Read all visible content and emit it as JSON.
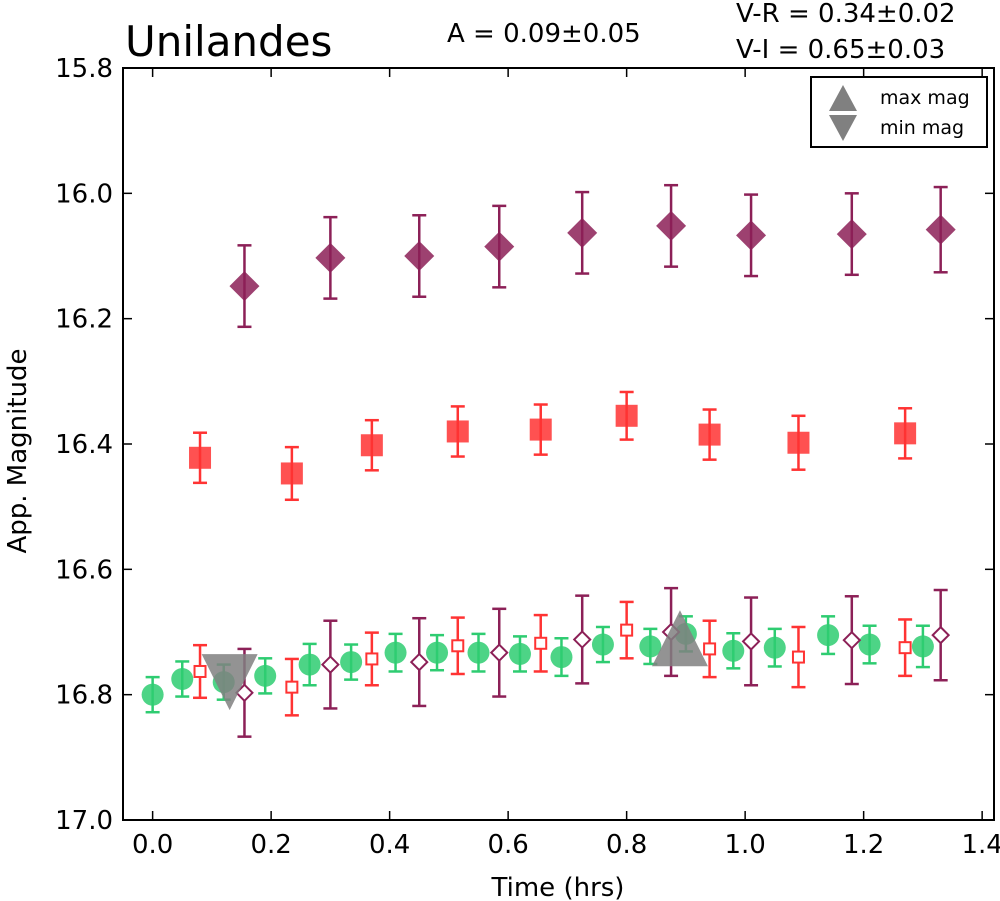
{
  "chart_data": {
    "type": "scatter",
    "title": "Unilandes",
    "annotations": {
      "amplitude": "A  = 0.09±0.05",
      "v_r": "V-R = 0.34±0.02",
      "v_i": "V-I  = 0.65±0.03"
    },
    "xlabel": "Time (hrs)",
    "ylabel": "App. Magnitude",
    "xlim": [
      -0.05,
      1.42
    ],
    "ylim": [
      17.0,
      15.8
    ],
    "y_inverted": true,
    "xticks": [
      "0.0",
      "0.2",
      "0.4",
      "0.6",
      "0.8",
      "1.0",
      "1.2",
      "1.4"
    ],
    "yticks": [
      "15.8",
      "16.0",
      "16.2",
      "16.4",
      "16.6",
      "16.8",
      "17.0"
    ],
    "grid": false,
    "legend": {
      "placement": "top-right",
      "entries": [
        {
          "label": "max mag",
          "marker": "triangle-up",
          "color": "#808080"
        },
        {
          "label": "min mag",
          "marker": "triangle-down",
          "color": "#808080"
        }
      ]
    },
    "series": [
      {
        "marker": "circle",
        "color": "#2ecc71",
        "filled": true,
        "x": [
          0.0,
          0.05,
          0.12,
          0.19,
          0.265,
          0.335,
          0.41,
          0.48,
          0.55,
          0.62,
          0.69,
          0.76,
          0.84,
          0.9,
          0.98,
          1.05,
          1.14,
          1.21,
          1.3
        ],
        "y": [
          16.8,
          16.775,
          16.78,
          16.77,
          16.752,
          16.748,
          16.733,
          16.733,
          16.733,
          16.735,
          16.74,
          16.72,
          16.723,
          16.703,
          16.73,
          16.725,
          16.705,
          16.72,
          16.723
        ],
        "err": [
          0.028,
          0.028,
          0.028,
          0.028,
          0.033,
          0.028,
          0.03,
          0.028,
          0.03,
          0.028,
          0.03,
          0.028,
          0.028,
          0.028,
          0.028,
          0.03,
          0.03,
          0.03,
          0.033
        ]
      },
      {
        "marker": "square",
        "color": "#ff3333",
        "filled": true,
        "x": [
          0.08,
          0.235,
          0.37,
          0.515,
          0.655,
          0.8,
          0.94,
          1.09,
          1.27
        ],
        "y": [
          16.422,
          16.447,
          16.402,
          16.38,
          16.377,
          16.355,
          16.385,
          16.398,
          16.383
        ],
        "err": [
          0.04,
          0.042,
          0.04,
          0.04,
          0.04,
          0.038,
          0.04,
          0.043,
          0.04
        ]
      },
      {
        "marker": "diamond",
        "color": "#8c2057",
        "filled": true,
        "x": [
          0.155,
          0.3,
          0.45,
          0.585,
          0.725,
          0.875,
          1.01,
          1.18,
          1.33
        ],
        "y": [
          16.148,
          16.103,
          16.1,
          16.085,
          16.063,
          16.052,
          16.067,
          16.065,
          16.058
        ],
        "err": [
          0.065,
          0.065,
          0.065,
          0.065,
          0.065,
          0.065,
          0.065,
          0.065,
          0.068
        ]
      },
      {
        "marker": "square",
        "color": "#ff3333",
        "filled": false,
        "x": [
          0.08,
          0.235,
          0.37,
          0.515,
          0.655,
          0.8,
          0.94,
          1.09,
          1.27
        ],
        "y": [
          16.763,
          16.788,
          16.743,
          16.722,
          16.718,
          16.697,
          16.727,
          16.74,
          16.725
        ],
        "err": [
          0.042,
          0.045,
          0.042,
          0.045,
          0.045,
          0.045,
          0.045,
          0.048,
          0.045
        ]
      },
      {
        "marker": "diamond",
        "color": "#8c2057",
        "filled": false,
        "x": [
          0.155,
          0.3,
          0.45,
          0.585,
          0.725,
          0.875,
          1.01,
          1.18,
          1.33
        ],
        "y": [
          16.797,
          16.752,
          16.748,
          16.733,
          16.712,
          16.7,
          16.715,
          16.713,
          16.705
        ],
        "err": [
          0.07,
          0.07,
          0.07,
          0.07,
          0.07,
          0.07,
          0.07,
          0.07,
          0.072
        ]
      }
    ],
    "markers": [
      {
        "label": "max mag",
        "marker": "triangle-up",
        "color": "#808080",
        "x": 0.89,
        "y": 16.71
      },
      {
        "label": "min mag",
        "marker": "triangle-down",
        "color": "#808080",
        "x": 0.13,
        "y": 16.78
      }
    ]
  }
}
